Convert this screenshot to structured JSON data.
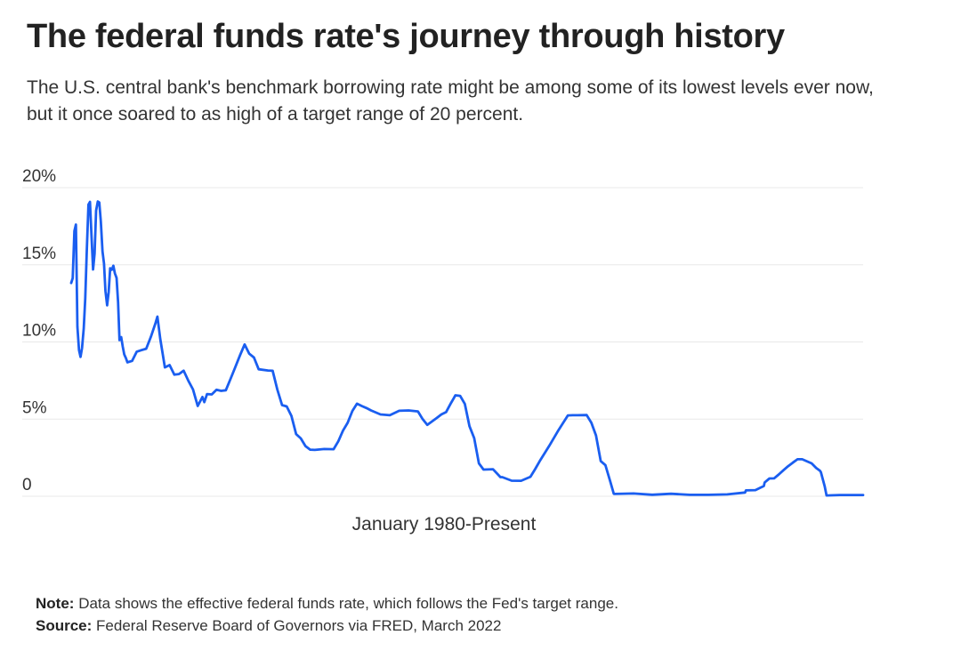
{
  "header": {
    "title": "The federal funds rate's journey through history",
    "subtitle": "The U.S. central bank's benchmark borrowing rate might be among some of its lowest levels ever now, but it once soared to as high of a target range of 20 percent."
  },
  "footer": {
    "note_label": "Note:",
    "note_text": "Data shows the effective federal funds rate, which follows the Fed's target range.",
    "source_label": "Source:",
    "source_text": "Federal Reserve Board of Governors via FRED, March 2022"
  },
  "colors": {
    "line": "#1a5ef0",
    "grid": "#e8e8e8"
  },
  "chart_data": {
    "type": "line",
    "title": "The federal funds rate's journey through history",
    "xlabel": "January 1980-Present",
    "ylabel": "",
    "xlim": [
      1980,
      2022.25
    ],
    "ylim": [
      0,
      20
    ],
    "yticks": [
      0,
      5,
      10,
      15,
      20
    ],
    "ytick_labels": [
      "0",
      "5%",
      "10%",
      "15%",
      "20%"
    ],
    "grid": true,
    "legend": "none",
    "series": [
      {
        "name": "Effective federal funds rate",
        "x": [
          1980.0,
          1980.08,
          1980.17,
          1980.25,
          1980.33,
          1980.42,
          1980.5,
          1980.58,
          1980.67,
          1980.75,
          1980.83,
          1980.92,
          1981.0,
          1981.08,
          1981.17,
          1981.25,
          1981.33,
          1981.42,
          1981.5,
          1981.58,
          1981.67,
          1981.75,
          1981.83,
          1981.92,
          1982.0,
          1982.08,
          1982.17,
          1982.25,
          1982.33,
          1982.42,
          1982.5,
          1982.58,
          1982.67,
          1982.75,
          1982.83,
          1982.92,
          1983.0,
          1983.25,
          1983.5,
          1983.75,
          1984.0,
          1984.25,
          1984.5,
          1984.6,
          1984.75,
          1985.0,
          1985.25,
          1985.5,
          1985.75,
          1986.0,
          1986.25,
          1986.5,
          1986.75,
          1987.0,
          1987.1,
          1987.25,
          1987.5,
          1987.75,
          1988.0,
          1988.25,
          1988.5,
          1988.75,
          1989.0,
          1989.25,
          1989.5,
          1989.75,
          1990.0,
          1990.5,
          1990.75,
          1991.0,
          1991.25,
          1991.5,
          1991.75,
          1992.0,
          1992.25,
          1992.5,
          1992.75,
          1993.0,
          1993.5,
          1994.0,
          1994.25,
          1994.5,
          1994.75,
          1995.0,
          1995.25,
          1995.5,
          1995.75,
          1996.0,
          1996.5,
          1997.0,
          1997.5,
          1998.0,
          1998.5,
          1998.75,
          1999.0,
          1999.5,
          1999.75,
          2000.0,
          2000.25,
          2000.5,
          2000.75,
          2001.0,
          2001.25,
          2001.5,
          2001.75,
          2002.0,
          2002.5,
          2002.9,
          2003.0,
          2003.5,
          2004.0,
          2004.5,
          2004.75,
          2005.0,
          2005.5,
          2006.0,
          2006.5,
          2006.75,
          2007.0,
          2007.5,
          2007.75,
          2008.0,
          2008.25,
          2008.5,
          2008.75,
          2008.95,
          2009.0,
          2010.0,
          2011.0,
          2012.0,
          2013.0,
          2014.0,
          2015.0,
          2015.95,
          2016.0,
          2016.5,
          2016.95,
          2017.0,
          2017.25,
          2017.5,
          2017.75,
          2018.0,
          2018.25,
          2018.5,
          2018.75,
          2019.0,
          2019.5,
          2019.75,
          2019.95,
          2020.0,
          2020.2,
          2020.3,
          2021.0,
          2022.0,
          2022.25
        ],
        "values": [
          13.82,
          14.13,
          17.19,
          17.61,
          10.98,
          9.47,
          9.03,
          9.61,
          10.87,
          12.81,
          15.85,
          18.9,
          19.08,
          16.93,
          14.7,
          15.72,
          18.52,
          19.1,
          19.04,
          17.82,
          15.87,
          15.08,
          13.31,
          12.37,
          13.22,
          14.78,
          14.68,
          14.94,
          14.45,
          14.15,
          12.59,
          10.12,
          10.31,
          9.71,
          9.2,
          8.95,
          8.68,
          8.77,
          9.37,
          9.47,
          9.56,
          10.32,
          11.23,
          11.64,
          10.2,
          8.35,
          8.5,
          7.88,
          7.92,
          8.14,
          7.48,
          6.92,
          5.85,
          6.43,
          6.1,
          6.62,
          6.6,
          6.9,
          6.83,
          6.87,
          7.61,
          8.35,
          9.12,
          9.84,
          9.24,
          8.99,
          8.23,
          8.15,
          8.13,
          6.91,
          5.91,
          5.82,
          5.21,
          4.03,
          3.75,
          3.25,
          3.02,
          3.0,
          3.06,
          3.05,
          3.56,
          4.25,
          4.76,
          5.53,
          6.0,
          5.85,
          5.72,
          5.56,
          5.3,
          5.25,
          5.54,
          5.56,
          5.5,
          5.0,
          4.63,
          5.07,
          5.3,
          5.45,
          6.02,
          6.54,
          6.51,
          5.98,
          4.54,
          3.77,
          2.13,
          1.73,
          1.75,
          1.24,
          1.24,
          1.01,
          1.0,
          1.26,
          1.76,
          2.28,
          3.26,
          4.29,
          5.24,
          5.25,
          5.25,
          5.26,
          4.76,
          3.94,
          2.28,
          2.01,
          1.0,
          0.16,
          0.15,
          0.18,
          0.1,
          0.16,
          0.09,
          0.09,
          0.12,
          0.24,
          0.38,
          0.4,
          0.66,
          0.9,
          1.15,
          1.16,
          1.41,
          1.69,
          1.95,
          2.18,
          2.4,
          2.4,
          2.13,
          1.83,
          1.65,
          1.55,
          0.65,
          0.05,
          0.08,
          0.08,
          0.08
        ]
      }
    ]
  }
}
